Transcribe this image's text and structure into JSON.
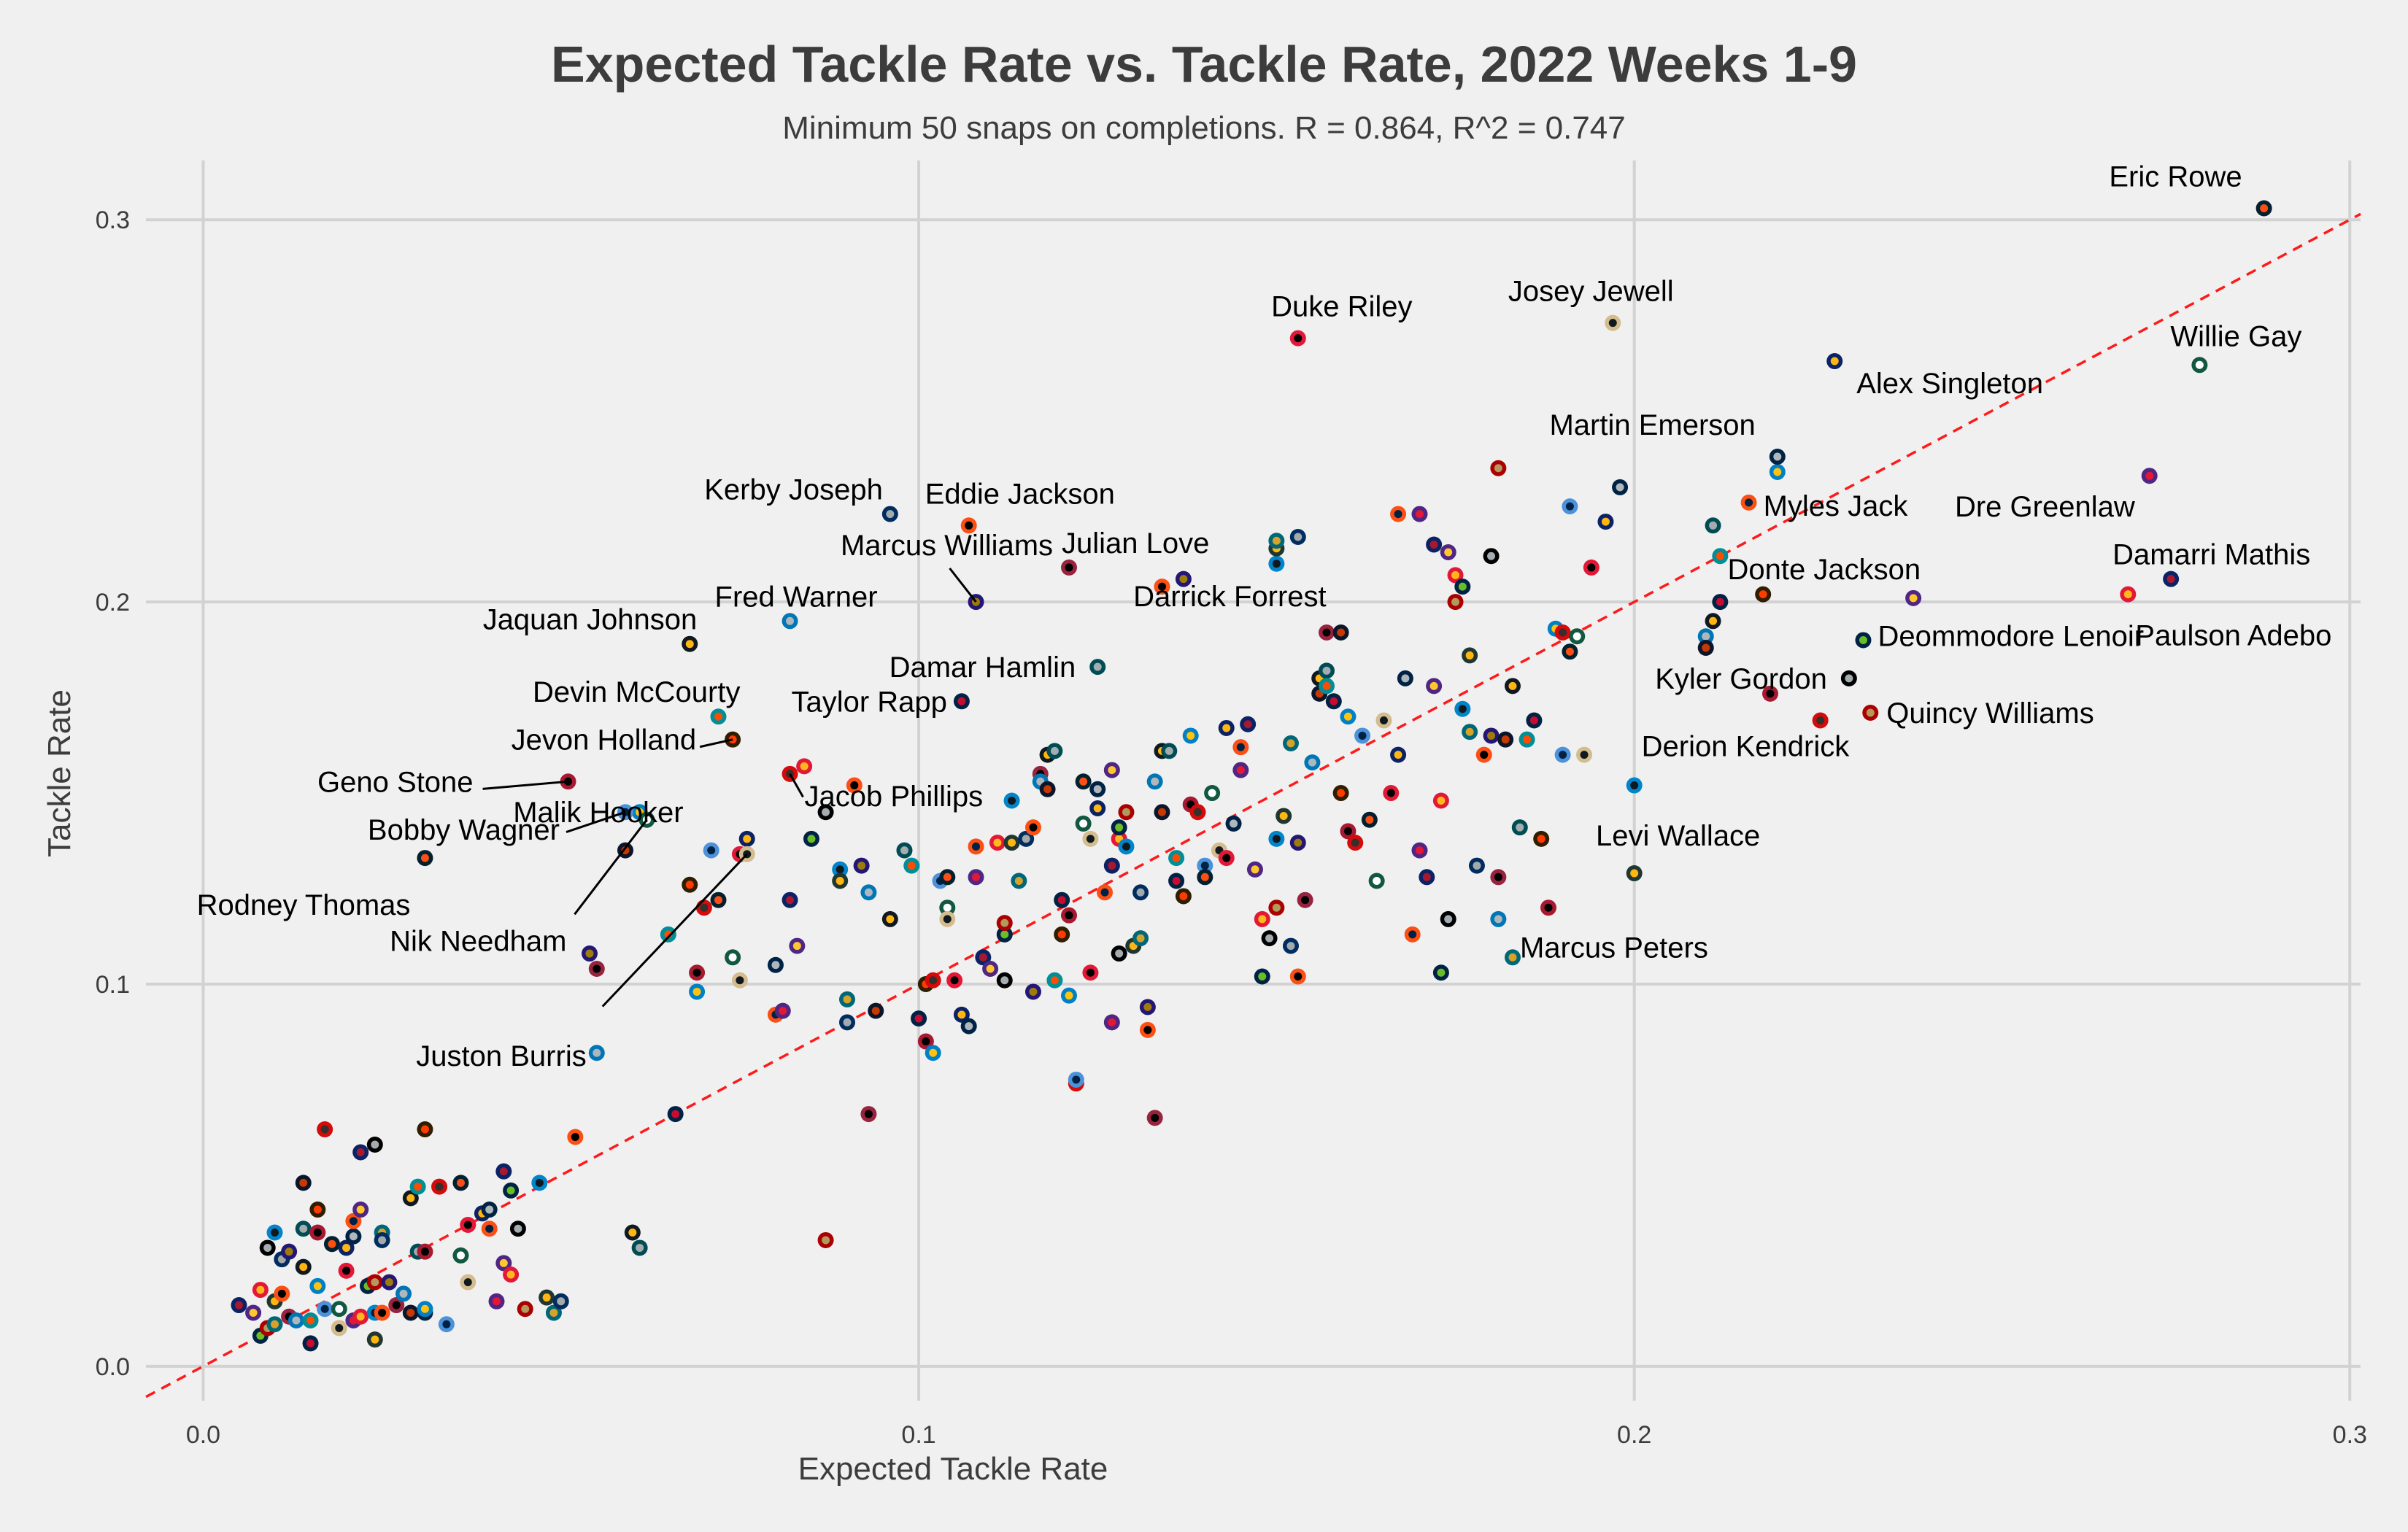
{
  "chart_data": {
    "type": "scatter",
    "title": "Expected Tackle Rate vs. Tackle Rate, 2022 Weeks 1-9",
    "subtitle": "Minimum 50 snaps on completions. R = 0.864, R^2 = 0.747",
    "xlabel": "Expected Tackle Rate",
    "ylabel": "Tackle Rate",
    "xlim": [
      -0.008,
      0.3015
    ],
    "ylim": [
      -0.009,
      0.3155
    ],
    "xticks": [
      0.0,
      0.1,
      0.2,
      0.3
    ],
    "xtick_labels": [
      "0.0",
      "0.1",
      "0.2",
      "0.3"
    ],
    "yticks": [
      0.0,
      0.1,
      0.2,
      0.3
    ],
    "ytick_labels": [
      "0.0",
      "0.1",
      "0.2",
      "0.3"
    ],
    "grid": true,
    "reference_line": {
      "slope": 1,
      "intercept": 0,
      "style": "dashed",
      "color": "#ff1a1a"
    },
    "team_colors": [
      [
        "#0b2265",
        "#a71930"
      ],
      [
        "#4f2683",
        "#ffc62f"
      ],
      [
        "#e31837",
        "#ffb81c"
      ],
      [
        "#002244",
        "#69be28"
      ],
      [
        "#000000",
        "#a5acaf"
      ],
      [
        "#aa0000",
        "#b3995d"
      ],
      [
        "#0085ca",
        "#101820"
      ],
      [
        "#203731",
        "#ffb612"
      ],
      [
        "#006778",
        "#d7a22a"
      ],
      [
        "#002c5f",
        "#a2aaad"
      ],
      [
        "#fb4f14",
        "#000000"
      ],
      [
        "#241773",
        "#9e7c0c"
      ],
      [
        "#97233f",
        "#000000"
      ],
      [
        "#0076b6",
        "#b0b7bc"
      ],
      [
        "#0b162a",
        "#c83803"
      ],
      [
        "#101820",
        "#ffb612"
      ],
      [
        "#004c54",
        "#a5acaf"
      ],
      [
        "#008e97",
        "#fc4c02"
      ],
      [
        "#002244",
        "#c60c30"
      ],
      [
        "#311d00",
        "#ff3c00"
      ],
      [
        "#a71930",
        "#000000"
      ],
      [
        "#0080c6",
        "#ffc20e"
      ],
      [
        "#d50a0a",
        "#34302b"
      ],
      [
        "#4b92db",
        "#002244"
      ],
      [
        "#03202f",
        "#fb4f14"
      ],
      [
        "#125740",
        "#ffffff"
      ],
      [
        "#d3bc8d",
        "#101820"
      ],
      [
        "#e31837",
        "#000000"
      ],
      [
        "#0b2265",
        "#ffb612"
      ],
      [
        "#002244",
        "#b0b7bc"
      ],
      [
        "#fb4f14",
        "#002244"
      ],
      [
        "#4f2683",
        "#e31837"
      ]
    ],
    "labeled_points": [
      {
        "name": "Eric Rowe",
        "x": 0.288,
        "y": 0.303
      },
      {
        "name": "Willie Gay",
        "x": 0.279,
        "y": 0.262
      },
      {
        "name": "Josey Jewell",
        "x": 0.197,
        "y": 0.273
      },
      {
        "name": "Duke Riley",
        "x": 0.153,
        "y": 0.269
      },
      {
        "name": "Alex Singleton",
        "x": 0.228,
        "y": 0.263
      },
      {
        "name": "Martin Emerson",
        "x": 0.22,
        "y": 0.238
      },
      {
        "name": "Myles Jack",
        "x": 0.216,
        "y": 0.226
      },
      {
        "name": "Dre Greenlaw",
        "x": 0.272,
        "y": 0.233
      },
      {
        "name": "Damarri Mathis",
        "x": 0.275,
        "y": 0.206
      },
      {
        "name": "Donte Jackson",
        "x": 0.239,
        "y": 0.201
      },
      {
        "name": "Paulson Adebo",
        "x": 0.269,
        "y": 0.202
      },
      {
        "name": "Deommodore Lenoir",
        "x": 0.232,
        "y": 0.19
      },
      {
        "name": "Kyler Gordon",
        "x": 0.23,
        "y": 0.18
      },
      {
        "name": "Quincy Williams",
        "x": 0.233,
        "y": 0.171
      },
      {
        "name": "Derion Kendrick",
        "x": 0.2,
        "y": 0.152
      },
      {
        "name": "Levi Wallace",
        "x": 0.2,
        "y": 0.129
      },
      {
        "name": "Marcus Peters",
        "x": 0.183,
        "y": 0.107
      },
      {
        "name": "Kerby Joseph",
        "x": 0.096,
        "y": 0.223
      },
      {
        "name": "Eddie Jackson",
        "x": 0.107,
        "y": 0.22
      },
      {
        "name": "Marcus Williams",
        "x": 0.108,
        "y": 0.2
      },
      {
        "name": "Julian Love",
        "x": 0.121,
        "y": 0.209
      },
      {
        "name": "Fred Warner",
        "x": 0.082,
        "y": 0.195
      },
      {
        "name": "Darrick Forrest",
        "x": 0.159,
        "y": 0.192
      },
      {
        "name": "Jaquan Johnson",
        "x": 0.068,
        "y": 0.189
      },
      {
        "name": "Damar Hamlin",
        "x": 0.125,
        "y": 0.183
      },
      {
        "name": "Devin McCourty",
        "x": 0.072,
        "y": 0.17
      },
      {
        "name": "Taylor Rapp",
        "x": 0.106,
        "y": 0.174
      },
      {
        "name": "Jevon Holland",
        "x": 0.074,
        "y": 0.164
      },
      {
        "name": "Geno Stone",
        "x": 0.051,
        "y": 0.153
      },
      {
        "name": "Malik Hooker",
        "x": 0.061,
        "y": 0.145
      },
      {
        "name": "Jacob Phillips",
        "x": 0.082,
        "y": 0.155
      },
      {
        "name": "Bobby Wagner",
        "x": 0.059,
        "y": 0.145
      },
      {
        "name": "Rodney Thomas",
        "x": 0.031,
        "y": 0.133
      },
      {
        "name": "Nik Needham",
        "x": 0.062,
        "y": 0.143
      },
      {
        "name": "Juston Burris",
        "x": 0.076,
        "y": 0.134
      }
    ],
    "points": [
      [
        0.005,
        0.016
      ],
      [
        0.007,
        0.014
      ],
      [
        0.008,
        0.02
      ],
      [
        0.008,
        0.008
      ],
      [
        0.009,
        0.031
      ],
      [
        0.009,
        0.01
      ],
      [
        0.01,
        0.035
      ],
      [
        0.01,
        0.017
      ],
      [
        0.01,
        0.011
      ],
      [
        0.011,
        0.028
      ],
      [
        0.011,
        0.019
      ],
      [
        0.012,
        0.03
      ],
      [
        0.012,
        0.013
      ],
      [
        0.013,
        0.012
      ],
      [
        0.014,
        0.048
      ],
      [
        0.014,
        0.026
      ],
      [
        0.014,
        0.036
      ],
      [
        0.015,
        0.012
      ],
      [
        0.015,
        0.006
      ],
      [
        0.016,
        0.041
      ],
      [
        0.016,
        0.035
      ],
      [
        0.016,
        0.021
      ],
      [
        0.017,
        0.062
      ],
      [
        0.017,
        0.015
      ],
      [
        0.018,
        0.032
      ],
      [
        0.019,
        0.015
      ],
      [
        0.019,
        0.01
      ],
      [
        0.02,
        0.025
      ],
      [
        0.02,
        0.031
      ],
      [
        0.021,
        0.034
      ],
      [
        0.021,
        0.038
      ],
      [
        0.021,
        0.012
      ],
      [
        0.022,
        0.056
      ],
      [
        0.022,
        0.041
      ],
      [
        0.022,
        0.013
      ],
      [
        0.023,
        0.021
      ],
      [
        0.024,
        0.058
      ],
      [
        0.024,
        0.022
      ],
      [
        0.024,
        0.014
      ],
      [
        0.024,
        0.007
      ],
      [
        0.025,
        0.035
      ],
      [
        0.025,
        0.033
      ],
      [
        0.025,
        0.014
      ],
      [
        0.026,
        0.022
      ],
      [
        0.027,
        0.016
      ],
      [
        0.028,
        0.019
      ],
      [
        0.029,
        0.014
      ],
      [
        0.029,
        0.044
      ],
      [
        0.03,
        0.03
      ],
      [
        0.03,
        0.047
      ],
      [
        0.031,
        0.014
      ],
      [
        0.031,
        0.062
      ],
      [
        0.031,
        0.03
      ],
      [
        0.031,
        0.015
      ],
      [
        0.033,
        0.047
      ],
      [
        0.034,
        0.011
      ],
      [
        0.036,
        0.048
      ],
      [
        0.036,
        0.029
      ],
      [
        0.037,
        0.022
      ],
      [
        0.037,
        0.037
      ],
      [
        0.039,
        0.04
      ],
      [
        0.04,
        0.041
      ],
      [
        0.04,
        0.036
      ],
      [
        0.041,
        0.017
      ],
      [
        0.042,
        0.051
      ],
      [
        0.042,
        0.027
      ],
      [
        0.043,
        0.024
      ],
      [
        0.043,
        0.046
      ],
      [
        0.044,
        0.036
      ],
      [
        0.045,
        0.015
      ],
      [
        0.047,
        0.048
      ],
      [
        0.048,
        0.018
      ],
      [
        0.049,
        0.014
      ],
      [
        0.05,
        0.017
      ],
      [
        0.052,
        0.06
      ],
      [
        0.054,
        0.108
      ],
      [
        0.055,
        0.104
      ],
      [
        0.055,
        0.082
      ],
      [
        0.059,
        0.135
      ],
      [
        0.06,
        0.035
      ],
      [
        0.061,
        0.031
      ],
      [
        0.065,
        0.113
      ],
      [
        0.066,
        0.066
      ],
      [
        0.068,
        0.126
      ],
      [
        0.069,
        0.103
      ],
      [
        0.069,
        0.098
      ],
      [
        0.07,
        0.12
      ],
      [
        0.071,
        0.135
      ],
      [
        0.072,
        0.122
      ],
      [
        0.074,
        0.107
      ],
      [
        0.075,
        0.101
      ],
      [
        0.075,
        0.134
      ],
      [
        0.076,
        0.138
      ],
      [
        0.08,
        0.105
      ],
      [
        0.08,
        0.092
      ],
      [
        0.081,
        0.093
      ],
      [
        0.082,
        0.122
      ],
      [
        0.083,
        0.11
      ],
      [
        0.084,
        0.157
      ],
      [
        0.085,
        0.138
      ],
      [
        0.087,
        0.145
      ],
      [
        0.087,
        0.033
      ],
      [
        0.089,
        0.13
      ],
      [
        0.089,
        0.127
      ],
      [
        0.09,
        0.096
      ],
      [
        0.09,
        0.09
      ],
      [
        0.091,
        0.152
      ],
      [
        0.092,
        0.131
      ],
      [
        0.093,
        0.066
      ],
      [
        0.093,
        0.124
      ],
      [
        0.094,
        0.093
      ],
      [
        0.096,
        0.117
      ],
      [
        0.098,
        0.135
      ],
      [
        0.099,
        0.131
      ],
      [
        0.1,
        0.091
      ],
      [
        0.101,
        0.1
      ],
      [
        0.101,
        0.085
      ],
      [
        0.102,
        0.082
      ],
      [
        0.102,
        0.101
      ],
      [
        0.103,
        0.127
      ],
      [
        0.104,
        0.128
      ],
      [
        0.104,
        0.12
      ],
      [
        0.104,
        0.117
      ],
      [
        0.105,
        0.101
      ],
      [
        0.106,
        0.092
      ],
      [
        0.107,
        0.089
      ],
      [
        0.108,
        0.136
      ],
      [
        0.108,
        0.128
      ],
      [
        0.109,
        0.107
      ],
      [
        0.11,
        0.104
      ],
      [
        0.111,
        0.137
      ],
      [
        0.112,
        0.113
      ],
      [
        0.112,
        0.101
      ],
      [
        0.112,
        0.116
      ],
      [
        0.113,
        0.148
      ],
      [
        0.113,
        0.137
      ],
      [
        0.114,
        0.127
      ],
      [
        0.115,
        0.138
      ],
      [
        0.116,
        0.141
      ],
      [
        0.116,
        0.098
      ],
      [
        0.117,
        0.155
      ],
      [
        0.117,
        0.153
      ],
      [
        0.118,
        0.151
      ],
      [
        0.118,
        0.16
      ],
      [
        0.119,
        0.161
      ],
      [
        0.119,
        0.101
      ],
      [
        0.12,
        0.122
      ],
      [
        0.12,
        0.113
      ],
      [
        0.121,
        0.118
      ],
      [
        0.121,
        0.097
      ],
      [
        0.122,
        0.074
      ],
      [
        0.122,
        0.075
      ],
      [
        0.123,
        0.153
      ],
      [
        0.123,
        0.142
      ],
      [
        0.124,
        0.138
      ],
      [
        0.124,
        0.103
      ],
      [
        0.125,
        0.146
      ],
      [
        0.125,
        0.151
      ],
      [
        0.126,
        0.124
      ],
      [
        0.127,
        0.09
      ],
      [
        0.127,
        0.131
      ],
      [
        0.127,
        0.156
      ],
      [
        0.128,
        0.138
      ],
      [
        0.128,
        0.141
      ],
      [
        0.128,
        0.108
      ],
      [
        0.129,
        0.145
      ],
      [
        0.129,
        0.136
      ],
      [
        0.13,
        0.11
      ],
      [
        0.131,
        0.112
      ],
      [
        0.131,
        0.124
      ],
      [
        0.132,
        0.088
      ],
      [
        0.132,
        0.094
      ],
      [
        0.133,
        0.065
      ],
      [
        0.133,
        0.153
      ],
      [
        0.134,
        0.145
      ],
      [
        0.134,
        0.161
      ],
      [
        0.135,
        0.161
      ],
      [
        0.136,
        0.133
      ],
      [
        0.136,
        0.127
      ],
      [
        0.137,
        0.123
      ],
      [
        0.138,
        0.147
      ],
      [
        0.138,
        0.165
      ],
      [
        0.139,
        0.145
      ],
      [
        0.14,
        0.131
      ],
      [
        0.14,
        0.128
      ],
      [
        0.141,
        0.15
      ],
      [
        0.142,
        0.135
      ],
      [
        0.143,
        0.133
      ],
      [
        0.143,
        0.167
      ],
      [
        0.144,
        0.142
      ],
      [
        0.145,
        0.162
      ],
      [
        0.145,
        0.156
      ],
      [
        0.146,
        0.168
      ],
      [
        0.147,
        0.13
      ],
      [
        0.148,
        0.117
      ],
      [
        0.148,
        0.102
      ],
      [
        0.149,
        0.112
      ],
      [
        0.15,
        0.12
      ],
      [
        0.15,
        0.138
      ],
      [
        0.151,
        0.144
      ],
      [
        0.152,
        0.163
      ],
      [
        0.152,
        0.11
      ],
      [
        0.153,
        0.102
      ],
      [
        0.153,
        0.137
      ],
      [
        0.154,
        0.122
      ],
      [
        0.155,
        0.158
      ],
      [
        0.156,
        0.176
      ],
      [
        0.156,
        0.18
      ],
      [
        0.157,
        0.182
      ],
      [
        0.157,
        0.178
      ],
      [
        0.158,
        0.174
      ],
      [
        0.159,
        0.15
      ],
      [
        0.16,
        0.14
      ],
      [
        0.16,
        0.17
      ],
      [
        0.161,
        0.137
      ],
      [
        0.162,
        0.165
      ],
      [
        0.163,
        0.143
      ],
      [
        0.164,
        0.127
      ],
      [
        0.165,
        0.169
      ],
      [
        0.166,
        0.15
      ],
      [
        0.167,
        0.16
      ],
      [
        0.168,
        0.18
      ],
      [
        0.169,
        0.113
      ],
      [
        0.17,
        0.135
      ],
      [
        0.171,
        0.128
      ],
      [
        0.172,
        0.178
      ],
      [
        0.173,
        0.148
      ],
      [
        0.173,
        0.103
      ],
      [
        0.174,
        0.117
      ],
      [
        0.175,
        0.2
      ],
      [
        0.176,
        0.172
      ],
      [
        0.177,
        0.186
      ],
      [
        0.177,
        0.166
      ],
      [
        0.178,
        0.131
      ],
      [
        0.179,
        0.16
      ],
      [
        0.18,
        0.165
      ],
      [
        0.181,
        0.128
      ],
      [
        0.181,
        0.117
      ],
      [
        0.182,
        0.164
      ],
      [
        0.183,
        0.178
      ],
      [
        0.184,
        0.141
      ],
      [
        0.185,
        0.164
      ],
      [
        0.186,
        0.169
      ],
      [
        0.187,
        0.138
      ],
      [
        0.188,
        0.12
      ],
      [
        0.189,
        0.193
      ],
      [
        0.19,
        0.192
      ],
      [
        0.19,
        0.16
      ],
      [
        0.191,
        0.187
      ],
      [
        0.192,
        0.191
      ],
      [
        0.193,
        0.16
      ],
      [
        0.194,
        0.209
      ],
      [
        0.196,
        0.221
      ],
      [
        0.198,
        0.23
      ],
      [
        0.167,
        0.223
      ],
      [
        0.17,
        0.223
      ],
      [
        0.172,
        0.215
      ],
      [
        0.174,
        0.213
      ],
      [
        0.175,
        0.207
      ],
      [
        0.176,
        0.204
      ],
      [
        0.18,
        0.212
      ],
      [
        0.181,
        0.235
      ],
      [
        0.15,
        0.21
      ],
      [
        0.15,
        0.214
      ],
      [
        0.15,
        0.216
      ],
      [
        0.153,
        0.217
      ],
      [
        0.134,
        0.204
      ],
      [
        0.137,
        0.206
      ],
      [
        0.157,
        0.192
      ],
      [
        0.21,
        0.191
      ],
      [
        0.21,
        0.188
      ],
      [
        0.211,
        0.195
      ],
      [
        0.211,
        0.22
      ],
      [
        0.212,
        0.212
      ],
      [
        0.212,
        0.2
      ],
      [
        0.218,
        0.202
      ],
      [
        0.219,
        0.176
      ],
      [
        0.22,
        0.234
      ],
      [
        0.226,
        0.169
      ],
      [
        0.191,
        0.225
      ]
    ]
  }
}
